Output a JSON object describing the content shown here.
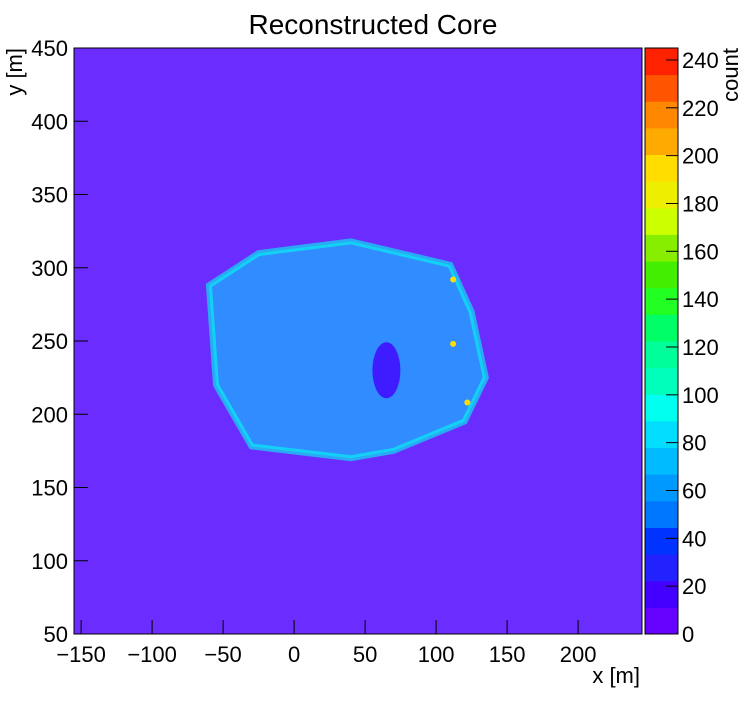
{
  "chart_data": {
    "type": "heatmap",
    "title": "Reconstructed Core",
    "xlabel": "x [m]",
    "ylabel": "y [m]",
    "zlabel": "count",
    "xlim": [
      -155,
      245
    ],
    "ylim": [
      50,
      450
    ],
    "zlim": [
      0,
      245
    ],
    "x_ticks": [
      -150,
      -100,
      -50,
      0,
      50,
      100,
      150,
      200
    ],
    "x_tick_labels": [
      "−150",
      "−100",
      "−50",
      "0",
      "50",
      "100",
      "150",
      "200"
    ],
    "y_ticks": [
      50,
      100,
      150,
      200,
      250,
      300,
      350,
      400,
      450
    ],
    "y_tick_labels": [
      "50",
      "100",
      "150",
      "200",
      "250",
      "300",
      "350",
      "400",
      "450"
    ],
    "z_ticks": [
      0,
      20,
      40,
      60,
      80,
      100,
      120,
      140,
      160,
      180,
      200,
      220,
      240
    ],
    "z_tick_labels": [
      "0",
      "20",
      "40",
      "60",
      "80",
      "100",
      "120",
      "140",
      "160",
      "180",
      "200",
      "220",
      "240"
    ],
    "grid": false,
    "palette": [
      "#6600ff",
      "#4400ff",
      "#2222ff",
      "#0033ff",
      "#0077ff",
      "#0099ff",
      "#00bbff",
      "#00ddff",
      "#00ffee",
      "#00ffbb",
      "#00ff99",
      "#00ff66",
      "#22ff22",
      "#44ee00",
      "#88ee00",
      "#ccff00",
      "#eeee00",
      "#ffdd00",
      "#ffaa00",
      "#ff8800",
      "#ff5500",
      "#ff2200"
    ],
    "background_level": 0,
    "dense_region": {
      "polygon_xy": [
        [
          -60,
          288
        ],
        [
          -25,
          310
        ],
        [
          40,
          318
        ],
        [
          110,
          302
        ],
        [
          125,
          270
        ],
        [
          135,
          225
        ],
        [
          120,
          195
        ],
        [
          70,
          175
        ],
        [
          40,
          170
        ],
        [
          -30,
          178
        ],
        [
          -55,
          220
        ]
      ],
      "level": 80
    },
    "hole_center_xy": [
      65,
      230
    ],
    "hot_spots_xy": [
      [
        112,
        248
      ],
      [
        122,
        208
      ],
      [
        112,
        292
      ]
    ],
    "hot_spot_level": 200
  }
}
